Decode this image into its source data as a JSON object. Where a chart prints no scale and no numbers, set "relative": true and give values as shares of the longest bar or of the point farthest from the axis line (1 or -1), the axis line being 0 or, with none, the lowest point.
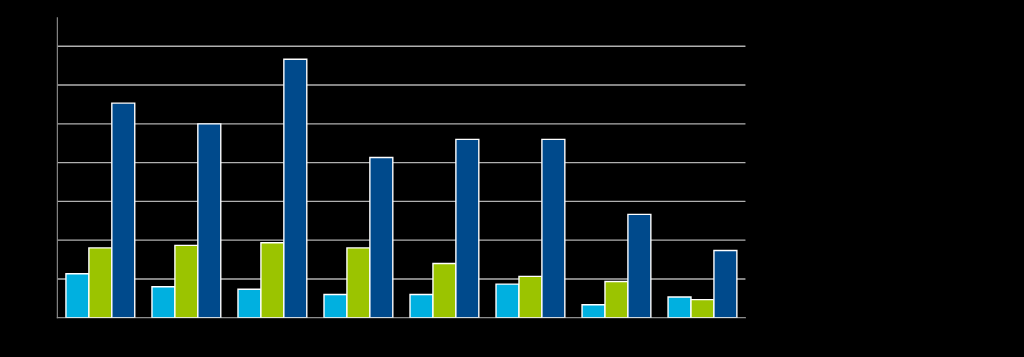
{
  "chart_data": {
    "type": "bar",
    "relative": true,
    "grid": "y",
    "categories": [
      null,
      null,
      null,
      null,
      null,
      null,
      null,
      null
    ],
    "series": [
      {
        "color": "#00b0e0",
        "values": [
          0.17,
          0.12,
          0.11,
          0.09,
          0.09,
          0.13,
          0.05,
          0.08
        ]
      },
      {
        "color": "#9bc400",
        "values": [
          0.27,
          0.28,
          0.29,
          0.27,
          0.21,
          0.16,
          0.14,
          0.07
        ]
      },
      {
        "color": "#004a8c",
        "values": [
          0.83,
          0.75,
          1.0,
          0.62,
          0.69,
          0.69,
          0.4,
          0.26
        ]
      }
    ]
  }
}
